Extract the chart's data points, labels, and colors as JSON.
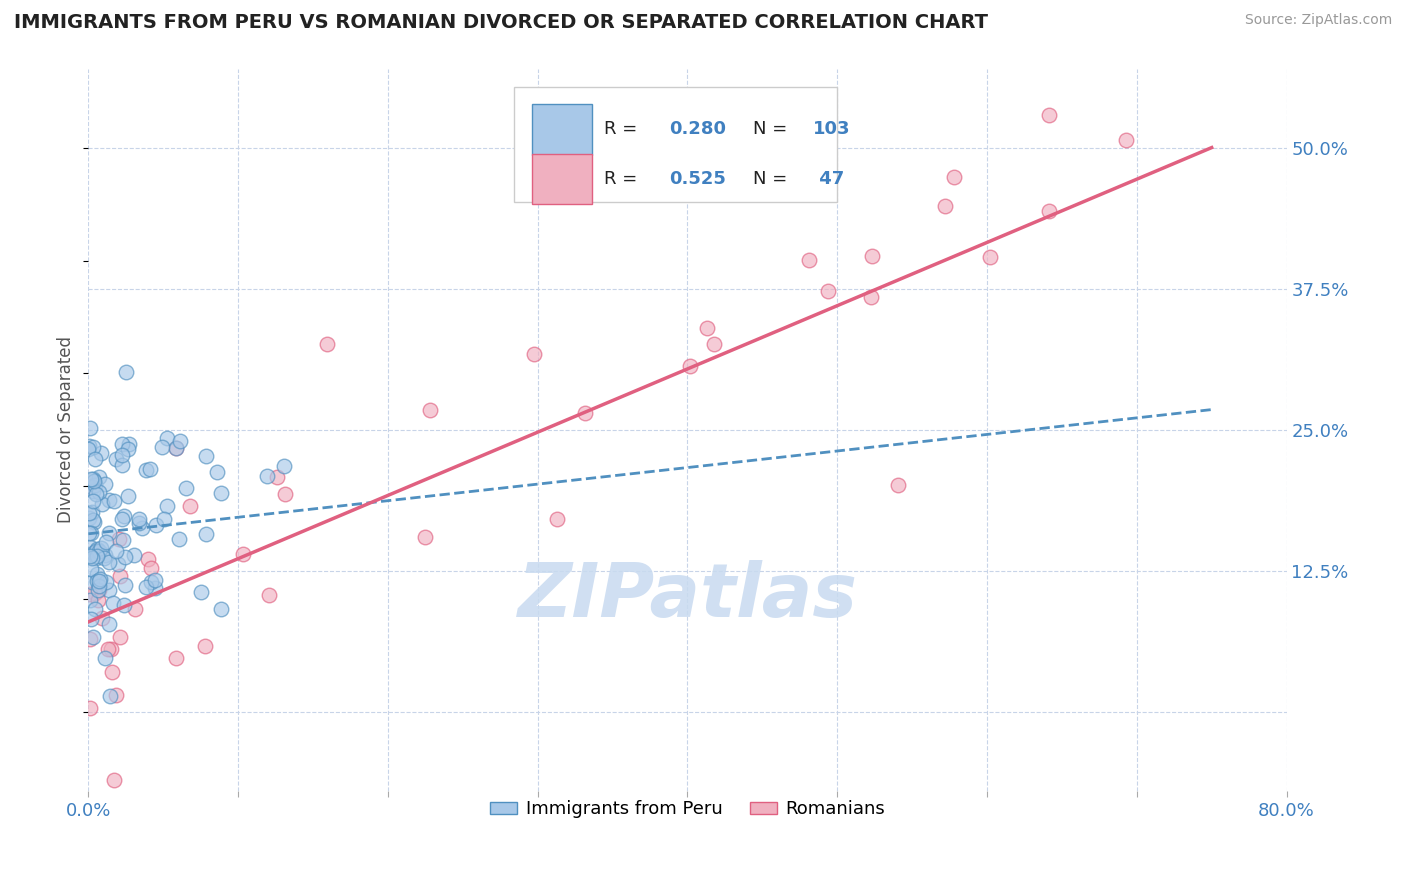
{
  "title": "IMMIGRANTS FROM PERU VS ROMANIAN DIVORCED OR SEPARATED CORRELATION CHART",
  "source": "Source: ZipAtlas.com",
  "ylabel": "Divorced or Separated",
  "legend_label1": "Immigrants from Peru",
  "legend_label2": "Romanians",
  "color_blue": "#a8c8e8",
  "color_blue_edge": "#5090c0",
  "color_pink": "#f0b0c0",
  "color_pink_edge": "#e06080",
  "color_blue_line": "#5090c0",
  "color_pink_line": "#e06080",
  "color_grid": "#c8d4e8",
  "color_axis_label": "#4080c0",
  "color_watermark": "#c8daf0",
  "xlim": [
    0.0,
    0.8
  ],
  "ylim": [
    -0.07,
    0.57
  ],
  "ytick_labels_right": [
    "12.5%",
    "25.0%",
    "37.5%",
    "50.0%"
  ],
  "ytick_vals_right": [
    0.125,
    0.25,
    0.375,
    0.5
  ],
  "blue_line": {
    "x0": 0.0,
    "x1": 0.75,
    "y0": 0.158,
    "y1": 0.268
  },
  "pink_line": {
    "x0": 0.0,
    "x1": 0.75,
    "y0": 0.08,
    "y1": 0.5
  },
  "watermark": "ZIPatlas"
}
